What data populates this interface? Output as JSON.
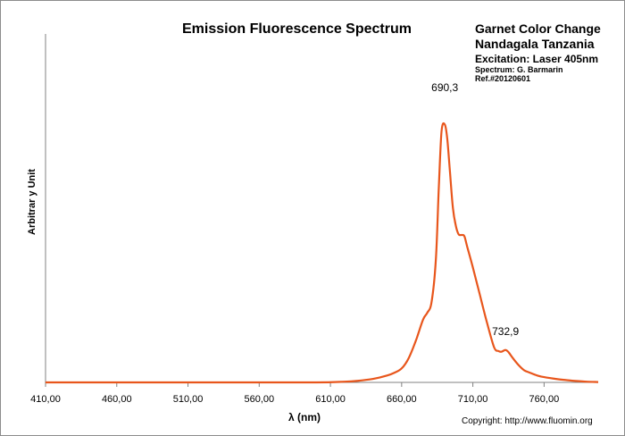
{
  "chart_data": {
    "type": "line",
    "title": "Emission Fluorescence Spectrum",
    "sample_lines": [
      "Garnet Color Change",
      "Nandagala Tanzania"
    ],
    "excitation": "Excitation:  Laser 405nm",
    "spectrum_by": "Spectrum: G. Barmarin",
    "ref": "Ref.#20120601",
    "xlabel": "λ (nm)",
    "ylabel": "Arbitrar y Unit",
    "copyright": "Copyright: http://www.fluomin.org",
    "xlim": [
      410,
      798
    ],
    "ylim": [
      0,
      1.0
    ],
    "grid": false,
    "line_color": "#e8561c",
    "x_ticks": [
      410,
      460,
      510,
      560,
      610,
      660,
      710,
      760
    ],
    "x_tick_labels": [
      "410,00",
      "460,00",
      "510,00",
      "560,00",
      "610,00",
      "660,00",
      "710,00",
      "760,00"
    ],
    "annotations": [
      {
        "x": 690.3,
        "y": 0.8,
        "text": "690,3"
      },
      {
        "x": 732.9,
        "y": 0.1,
        "text": "732,9"
      }
    ],
    "series": [
      {
        "x": [
          410,
          460,
          510,
          560,
          600,
          620,
          630,
          640,
          650,
          655,
          660,
          665,
          670,
          675,
          678,
          681,
          684,
          686,
          688,
          690.3,
          692,
          694,
          696,
          698,
          700,
          702,
          704,
          706,
          710,
          715,
          720,
          725,
          728,
          730,
          732.9,
          735,
          738,
          742,
          746,
          750,
          755,
          760,
          770,
          780,
          790,
          798
        ],
        "y": [
          0.0,
          0.0,
          0.0,
          0.0,
          0.0,
          0.002,
          0.005,
          0.01,
          0.02,
          0.028,
          0.04,
          0.07,
          0.12,
          0.18,
          0.2,
          0.23,
          0.35,
          0.55,
          0.72,
          0.74,
          0.7,
          0.6,
          0.5,
          0.45,
          0.425,
          0.423,
          0.42,
          0.39,
          0.33,
          0.25,
          0.17,
          0.1,
          0.09,
          0.088,
          0.093,
          0.087,
          0.07,
          0.05,
          0.035,
          0.028,
          0.02,
          0.015,
          0.009,
          0.005,
          0.002,
          0.001
        ]
      }
    ]
  }
}
